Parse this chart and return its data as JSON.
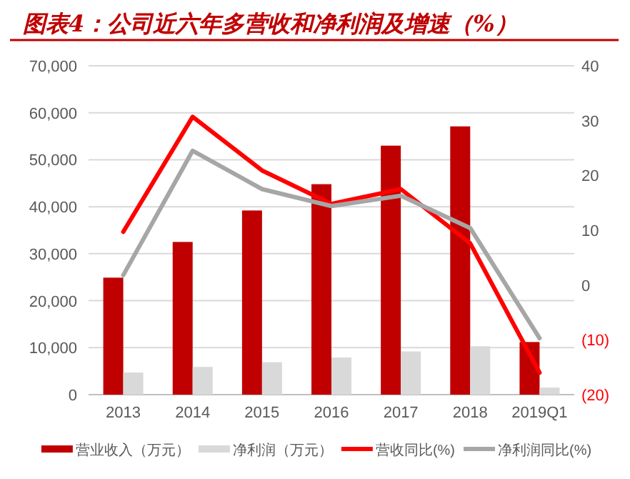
{
  "chart_data": {
    "type": "bar",
    "title": "图表4：公司近六年多营收和净利润及增速（%）",
    "categories": [
      "2013",
      "2014",
      "2015",
      "2016",
      "2017",
      "2018",
      "2019Q1"
    ],
    "series": [
      {
        "name": "营业收入（万元）",
        "color": "#c00000",
        "values": [
          24900,
          32500,
          39200,
          44800,
          53000,
          57100,
          11200
        ]
      },
      {
        "name": "净利润（万元）",
        "color": "#d9d9d9",
        "values": [
          4700,
          5900,
          6900,
          7900,
          9200,
          10300,
          1500
        ]
      },
      {
        "name": "营收同比(%)",
        "type": "line",
        "axis": "y2",
        "color": "#ff0000",
        "values": [
          9.7,
          30.7,
          20.9,
          14.8,
          17.5,
          7.6,
          -16.0
        ]
      },
      {
        "name": "净利润同比(%)",
        "type": "line",
        "axis": "y2",
        "color": "#a6a6a6",
        "values": [
          1.8,
          24.5,
          17.5,
          14.4,
          16.3,
          10.4,
          -9.7
        ]
      }
    ],
    "ylim": [
      0,
      70000
    ],
    "yticks": [
      0,
      {
        "value": 10000,
        "label": "10,000"
      },
      {
        "value": 20000,
        "label": "20,000"
      },
      {
        "value": 30000,
        "label": "30,000"
      },
      {
        "value": 40000,
        "label": "40,000"
      },
      {
        "value": 50000,
        "label": "50,000"
      },
      {
        "value": 60000,
        "label": "60,000"
      },
      {
        "value": 70000,
        "label": "70,000"
      }
    ],
    "y2lim": [
      -20,
      40
    ],
    "y2ticks": [
      {
        "value": -20,
        "label": "(20)"
      },
      {
        "value": -10,
        "label": "(10)"
      },
      0,
      10,
      20,
      30,
      40
    ],
    "grid": "y",
    "legend": "bottom"
  }
}
